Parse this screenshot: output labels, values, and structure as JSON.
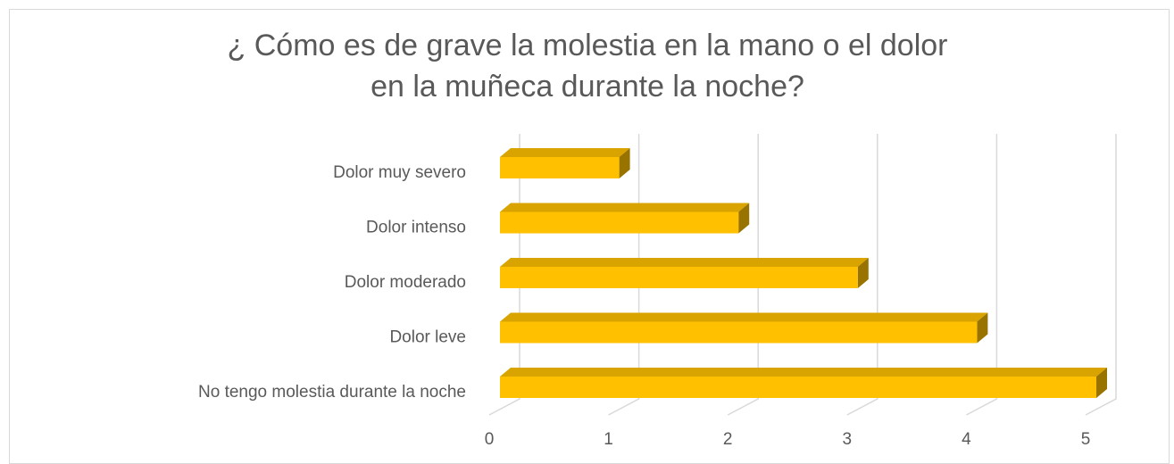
{
  "chart_data": {
    "type": "bar3d-horizontal",
    "title": "¿ Cómo es de grave la molestia en la mano o el dolor en la muñeca durante la noche?",
    "categories": [
      "Dolor muy severo",
      "Dolor intenso",
      "Dolor moderado",
      "Dolor leve",
      "No tengo molestia durante la noche"
    ],
    "values": [
      1,
      2,
      3,
      4,
      5
    ],
    "color": "#FFC000",
    "xlim": [
      0,
      5
    ],
    "xticks": [
      0,
      1,
      2,
      3,
      4,
      5
    ],
    "grid": true
  }
}
